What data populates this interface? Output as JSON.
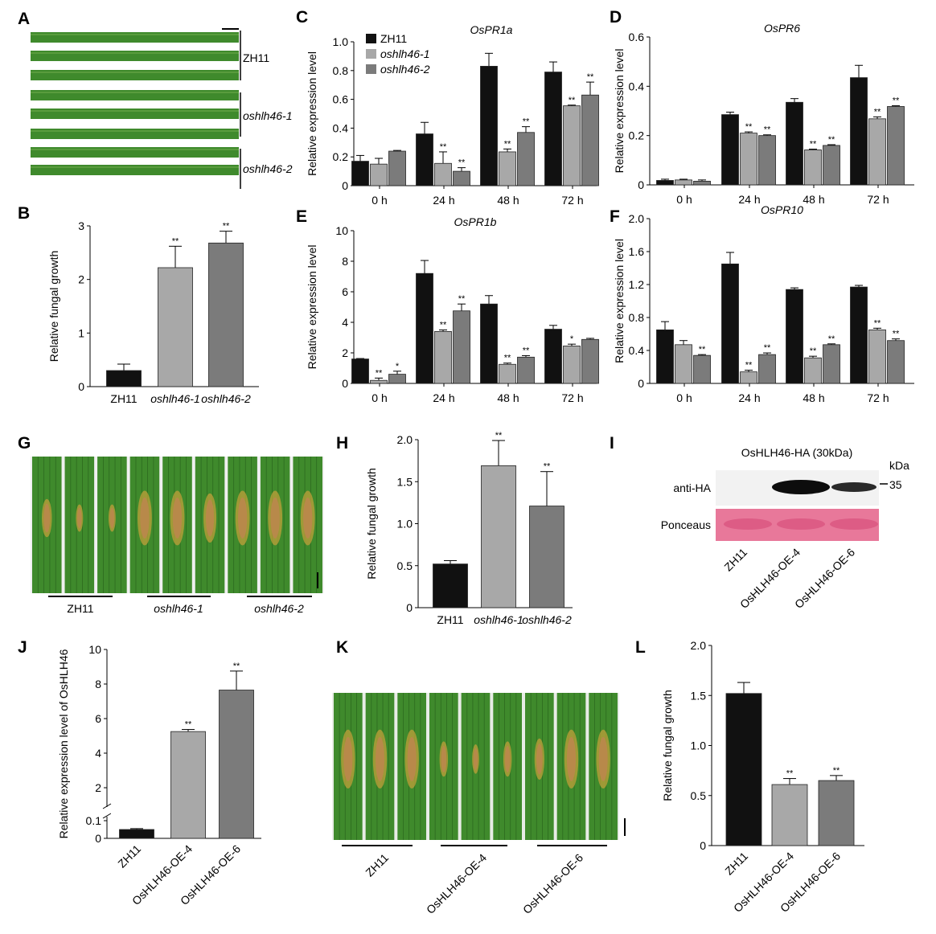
{
  "panels": {
    "A": "A",
    "B": "B",
    "C": "C",
    "D": "D",
    "E": "E",
    "F": "F",
    "G": "G",
    "H": "H",
    "I": "I",
    "J": "J",
    "K": "K",
    "L": "L"
  },
  "colors": {
    "ZH11": "#111111",
    "oshlh46-1": "#a8a8a8",
    "oshlh46-2": "#7b7b7b",
    "leaf": "#3f8a2c",
    "lesion": "#b8894a",
    "ponceau": "#e8789a"
  },
  "photo_A": {
    "labels": [
      "ZH11",
      "oshlh46-1",
      "oshlh46-2"
    ]
  },
  "photo_G": {
    "labels": [
      "ZH11",
      "oshlh46-1",
      "oshlh46-2"
    ]
  },
  "photo_K": {
    "labels": [
      "ZH11",
      "OsHLH46-OE-4",
      "OsHLH46-OE-6"
    ]
  },
  "blot_I": {
    "title": "OsHLH46-HA (30kDa)",
    "kda": "kDa",
    "marker": "35",
    "rows": [
      "anti-HA",
      "Ponceaus"
    ],
    "lanes": [
      "ZH11",
      "OsHLH46-OE-4",
      "OsHLH46-OE-6"
    ]
  },
  "chart_data": [
    {
      "id": "B",
      "type": "bar",
      "ylabel": "Relative fungal growth",
      "categories": [
        "ZH11",
        "oshlh46-1",
        "oshlh46-2"
      ],
      "values": [
        0.3,
        2.22,
        2.68
      ],
      "errors": [
        0.12,
        0.4,
        0.22
      ],
      "sig": [
        "",
        "**",
        "**"
      ],
      "ylim": [
        0,
        3
      ],
      "yticks": [
        "0",
        "1",
        "2",
        "3"
      ],
      "tickvals": [
        0,
        1,
        2,
        3
      ]
    },
    {
      "id": "C",
      "type": "bar",
      "title": "OsPR1a",
      "ylabel": "Relative expression level",
      "categories": [
        "0 h",
        "24 h",
        "48 h",
        "72 h"
      ],
      "ylim": [
        0,
        1.0
      ],
      "yticks": [
        "0",
        "0.2",
        "0.4",
        "0.6",
        "0.8",
        "1.0"
      ],
      "tickvals": [
        0,
        0.2,
        0.4,
        0.6,
        0.8,
        1.0
      ],
      "legend": "top-left",
      "series": [
        {
          "name": "ZH11",
          "values": [
            0.17,
            0.36,
            0.83,
            0.79
          ],
          "errors": [
            0.04,
            0.08,
            0.09,
            0.07
          ],
          "sig": [
            "",
            "",
            "",
            ""
          ]
        },
        {
          "name": "oshlh46-1",
          "values": [
            0.15,
            0.155,
            0.235,
            0.555
          ],
          "errors": [
            0.04,
            0.08,
            0.02,
            0.005
          ],
          "sig": [
            "",
            "**",
            "**",
            "**"
          ]
        },
        {
          "name": "oshlh46-2",
          "values": [
            0.24,
            0.1,
            0.37,
            0.63
          ],
          "errors": [
            0.005,
            0.025,
            0.04,
            0.09
          ],
          "sig": [
            "",
            "**",
            "**",
            "**"
          ]
        }
      ]
    },
    {
      "id": "D",
      "type": "bar",
      "title": "OsPR6",
      "ylabel": "Relative expression level",
      "categories": [
        "0 h",
        "24 h",
        "48 h",
        "72 h"
      ],
      "ylim": [
        0,
        0.6
      ],
      "yticks": [
        "0",
        "0.2",
        "0.4",
        "0.6"
      ],
      "tickvals": [
        0,
        0.2,
        0.4,
        0.6
      ],
      "series": [
        {
          "name": "ZH11",
          "values": [
            0.018,
            0.285,
            0.335,
            0.435
          ],
          "errors": [
            0.005,
            0.01,
            0.015,
            0.05
          ],
          "sig": [
            "",
            "",
            "",
            ""
          ]
        },
        {
          "name": "oshlh46-1",
          "values": [
            0.02,
            0.21,
            0.142,
            0.268
          ],
          "errors": [
            0.003,
            0.005,
            0.003,
            0.008
          ],
          "sig": [
            "",
            "**",
            "**",
            "**"
          ]
        },
        {
          "name": "oshlh46-2",
          "values": [
            0.015,
            0.2,
            0.16,
            0.318
          ],
          "errors": [
            0.005,
            0.003,
            0.003,
            0.003
          ],
          "sig": [
            "",
            "**",
            "**",
            "**"
          ]
        }
      ]
    },
    {
      "id": "E",
      "type": "bar",
      "title": "OsPR1b",
      "ylabel": "Relative expression level",
      "categories": [
        "0 h",
        "24 h",
        "48 h",
        "72 h"
      ],
      "ylim": [
        0,
        10
      ],
      "yticks": [
        "0",
        "2",
        "4",
        "6",
        "8",
        "10"
      ],
      "tickvals": [
        0,
        2,
        4,
        6,
        8,
        10
      ],
      "series": [
        {
          "name": "ZH11",
          "values": [
            1.6,
            7.2,
            5.2,
            3.55
          ],
          "errors": [
            0.03,
            0.85,
            0.55,
            0.25
          ],
          "sig": [
            "",
            "",
            "",
            ""
          ]
        },
        {
          "name": "oshlh46-1",
          "values": [
            0.2,
            3.4,
            1.25,
            2.45
          ],
          "errors": [
            0.15,
            0.1,
            0.08,
            0.12
          ],
          "sig": [
            "**",
            "**",
            "**",
            "*"
          ]
        },
        {
          "name": "oshlh46-2",
          "values": [
            0.6,
            4.75,
            1.72,
            2.88
          ],
          "errors": [
            0.2,
            0.45,
            0.1,
            0.07
          ],
          "sig": [
            "*",
            "**",
            "**",
            ""
          ]
        }
      ]
    },
    {
      "id": "F",
      "type": "bar",
      "title": "OsPR10",
      "ylabel": "Relative expression level",
      "categories": [
        "0 h",
        "24 h",
        "48 h",
        "72 h"
      ],
      "ylim": [
        0,
        2.0
      ],
      "yticks": [
        "0",
        "0.4",
        "0.8",
        "1.2",
        "1.6",
        "2.0"
      ],
      "tickvals": [
        0,
        0.4,
        0.8,
        1.2,
        1.6,
        2.0
      ],
      "series": [
        {
          "name": "ZH11",
          "values": [
            0.65,
            1.45,
            1.14,
            1.17
          ],
          "errors": [
            0.1,
            0.14,
            0.02,
            0.02
          ],
          "sig": [
            "",
            "",
            "",
            ""
          ]
        },
        {
          "name": "oshlh46-1",
          "values": [
            0.47,
            0.14,
            0.31,
            0.65
          ],
          "errors": [
            0.05,
            0.02,
            0.02,
            0.02
          ],
          "sig": [
            "",
            "**",
            "**",
            "**"
          ]
        },
        {
          "name": "oshlh46-2",
          "values": [
            0.34,
            0.35,
            0.47,
            0.52
          ],
          "errors": [
            0.01,
            0.02,
            0.01,
            0.02
          ],
          "sig": [
            "**",
            "**",
            "**",
            "**"
          ]
        }
      ]
    },
    {
      "id": "H",
      "type": "bar",
      "ylabel": "Relative fungal growth",
      "categories": [
        "ZH11",
        "oshlh46-1",
        "oshlh46-2"
      ],
      "values": [
        0.52,
        1.69,
        1.21
      ],
      "errors": [
        0.04,
        0.3,
        0.41
      ],
      "sig": [
        "",
        "**",
        "**"
      ],
      "ylim": [
        0,
        2.0
      ],
      "yticks": [
        "0",
        "0.5",
        "1.0",
        "1.5",
        "2.0"
      ],
      "tickvals": [
        0,
        0.5,
        1.0,
        1.5,
        2.0
      ]
    },
    {
      "id": "J",
      "type": "bar",
      "ylabel": "Relative expression level of OsHLH46",
      "categories": [
        "ZH11",
        "OsHLH46-OE-4",
        "OsHLH46-OE-6"
      ],
      "values": [
        0.05,
        5.25,
        7.65
      ],
      "errors": [
        0.005,
        0.12,
        1.1
      ],
      "sig": [
        "",
        "**",
        "**"
      ],
      "ylim": [
        0,
        10
      ],
      "axis_break": [
        0.1,
        2
      ],
      "yticks": [
        "0",
        "0.1",
        "2",
        "4",
        "6",
        "8",
        "10"
      ],
      "tickvals": [
        0,
        0.1,
        2,
        4,
        6,
        8,
        10
      ]
    },
    {
      "id": "L",
      "type": "bar",
      "ylabel": "Relative fungal growth",
      "categories": [
        "ZH11",
        "OsHLH46-OE-4",
        "OsHLH46-OE-6"
      ],
      "values": [
        1.52,
        0.61,
        0.65
      ],
      "errors": [
        0.11,
        0.06,
        0.05
      ],
      "sig": [
        "",
        "**",
        "**"
      ],
      "ylim": [
        0,
        2.0
      ],
      "yticks": [
        "0",
        "0.5",
        "1.0",
        "1.5",
        "2.0"
      ],
      "tickvals": [
        0,
        0.5,
        1.0,
        1.5,
        2.0
      ]
    }
  ]
}
